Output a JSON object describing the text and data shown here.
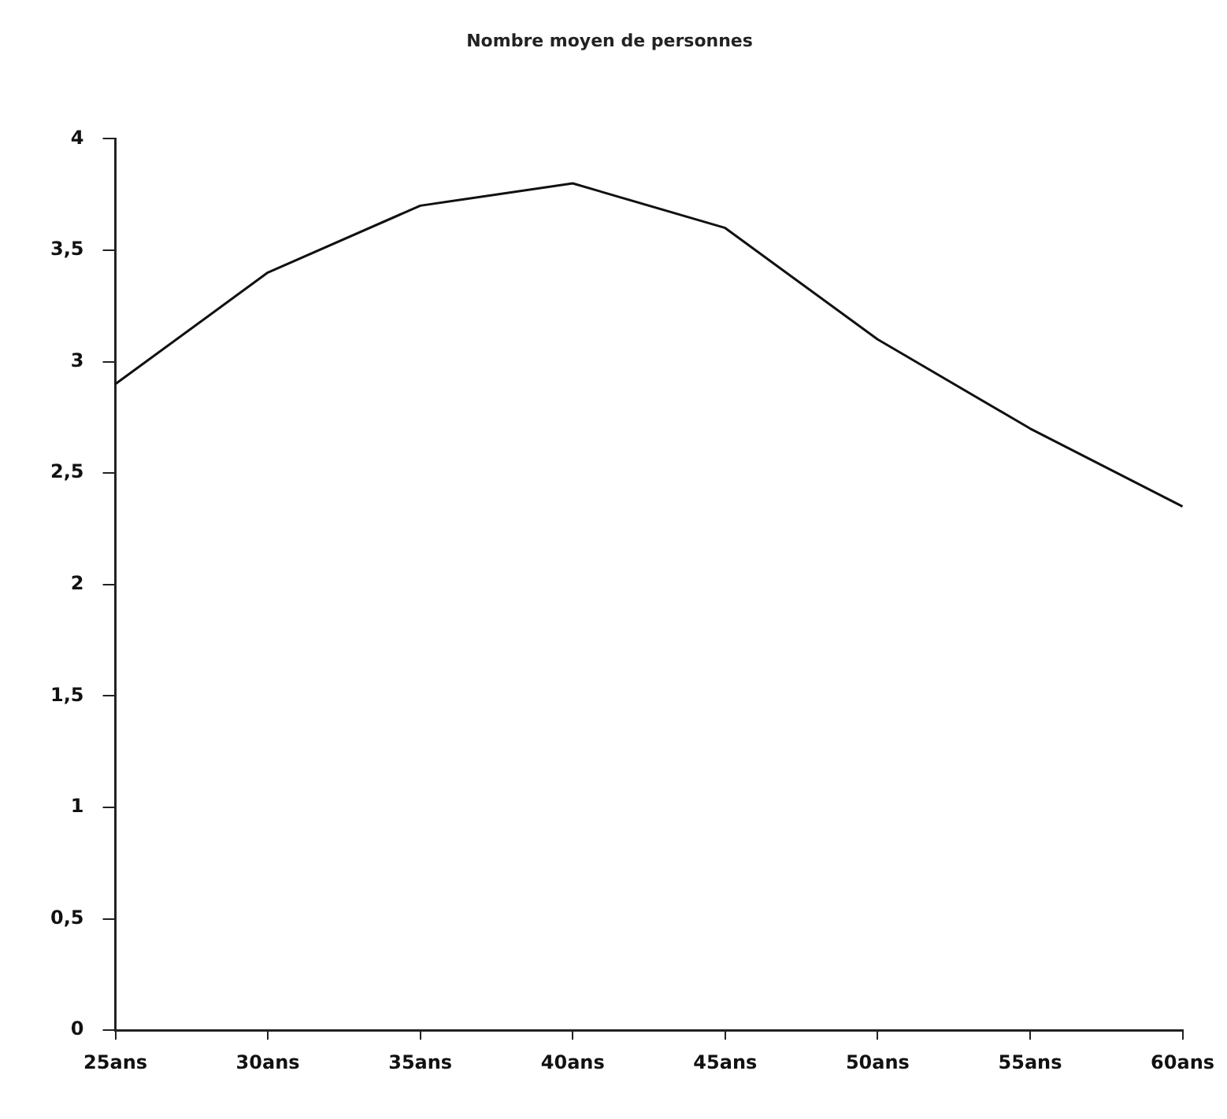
{
  "chart_data": {
    "type": "line",
    "title": "Nombre moyen de personnes",
    "categories": [
      "25ans",
      "30ans",
      "35ans",
      "40ans",
      "45ans",
      "50ans",
      "55ans",
      "60ans"
    ],
    "series": [
      {
        "color": "#111111",
        "values": [
          2.9,
          3.4,
          3.7,
          3.8,
          3.6,
          3.1,
          2.7,
          2.35
        ]
      }
    ],
    "ylim": [
      0,
      4
    ],
    "yticks": [
      0,
      {
        "value": 0.5,
        "label": "0,5"
      },
      1,
      {
        "value": 1.5,
        "label": "1,5"
      },
      2,
      {
        "value": 2.5,
        "label": "2,5"
      },
      3,
      {
        "value": 3.5,
        "label": "3,5"
      },
      4
    ],
    "grid": false,
    "legend": false,
    "marker": "none",
    "line_style": "solid"
  }
}
